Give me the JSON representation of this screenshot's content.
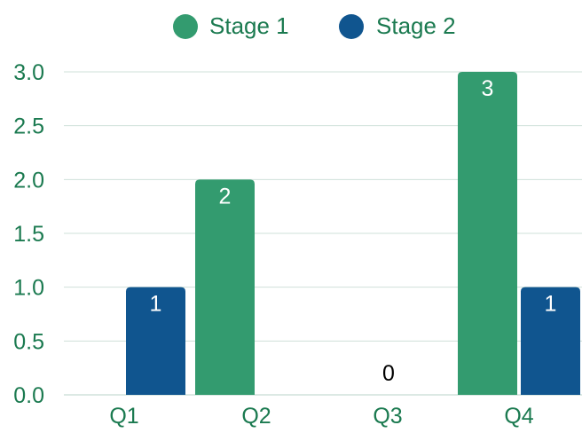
{
  "chart_data": {
    "type": "bar",
    "categories": [
      "Q1",
      "Q2",
      "Q3",
      "Q4"
    ],
    "series": [
      {
        "name": "Stage 1",
        "values": [
          0,
          2,
          0,
          3
        ],
        "color": "#339b6f"
      },
      {
        "name": "Stage 2",
        "values": [
          1,
          0,
          0,
          1
        ],
        "color": "#10558f"
      }
    ],
    "ylim": [
      0,
      3
    ],
    "yticks": [
      "0.0",
      "0.5",
      "1.0",
      "1.5",
      "2.0",
      "2.5",
      "3.0"
    ],
    "ytick_values": [
      0,
      0.5,
      1,
      1.5,
      2,
      2.5,
      3
    ],
    "data_labels": [
      {
        "category": "Q2",
        "series": "Stage 1",
        "text": "2"
      },
      {
        "category": "Q4",
        "series": "Stage 1",
        "text": "3"
      },
      {
        "category": "Q1",
        "series": "Stage 2",
        "text": "1"
      },
      {
        "category": "Q4",
        "series": "Stage 2",
        "text": "1"
      },
      {
        "category": "Q3",
        "series": null,
        "text": "0"
      }
    ],
    "legend_position": "top",
    "grid": true,
    "text_color": "#1b7a50",
    "grid_color": "#cfe0d9",
    "inside_label_color": "#ffffff",
    "zero_label_color": "#000000"
  }
}
